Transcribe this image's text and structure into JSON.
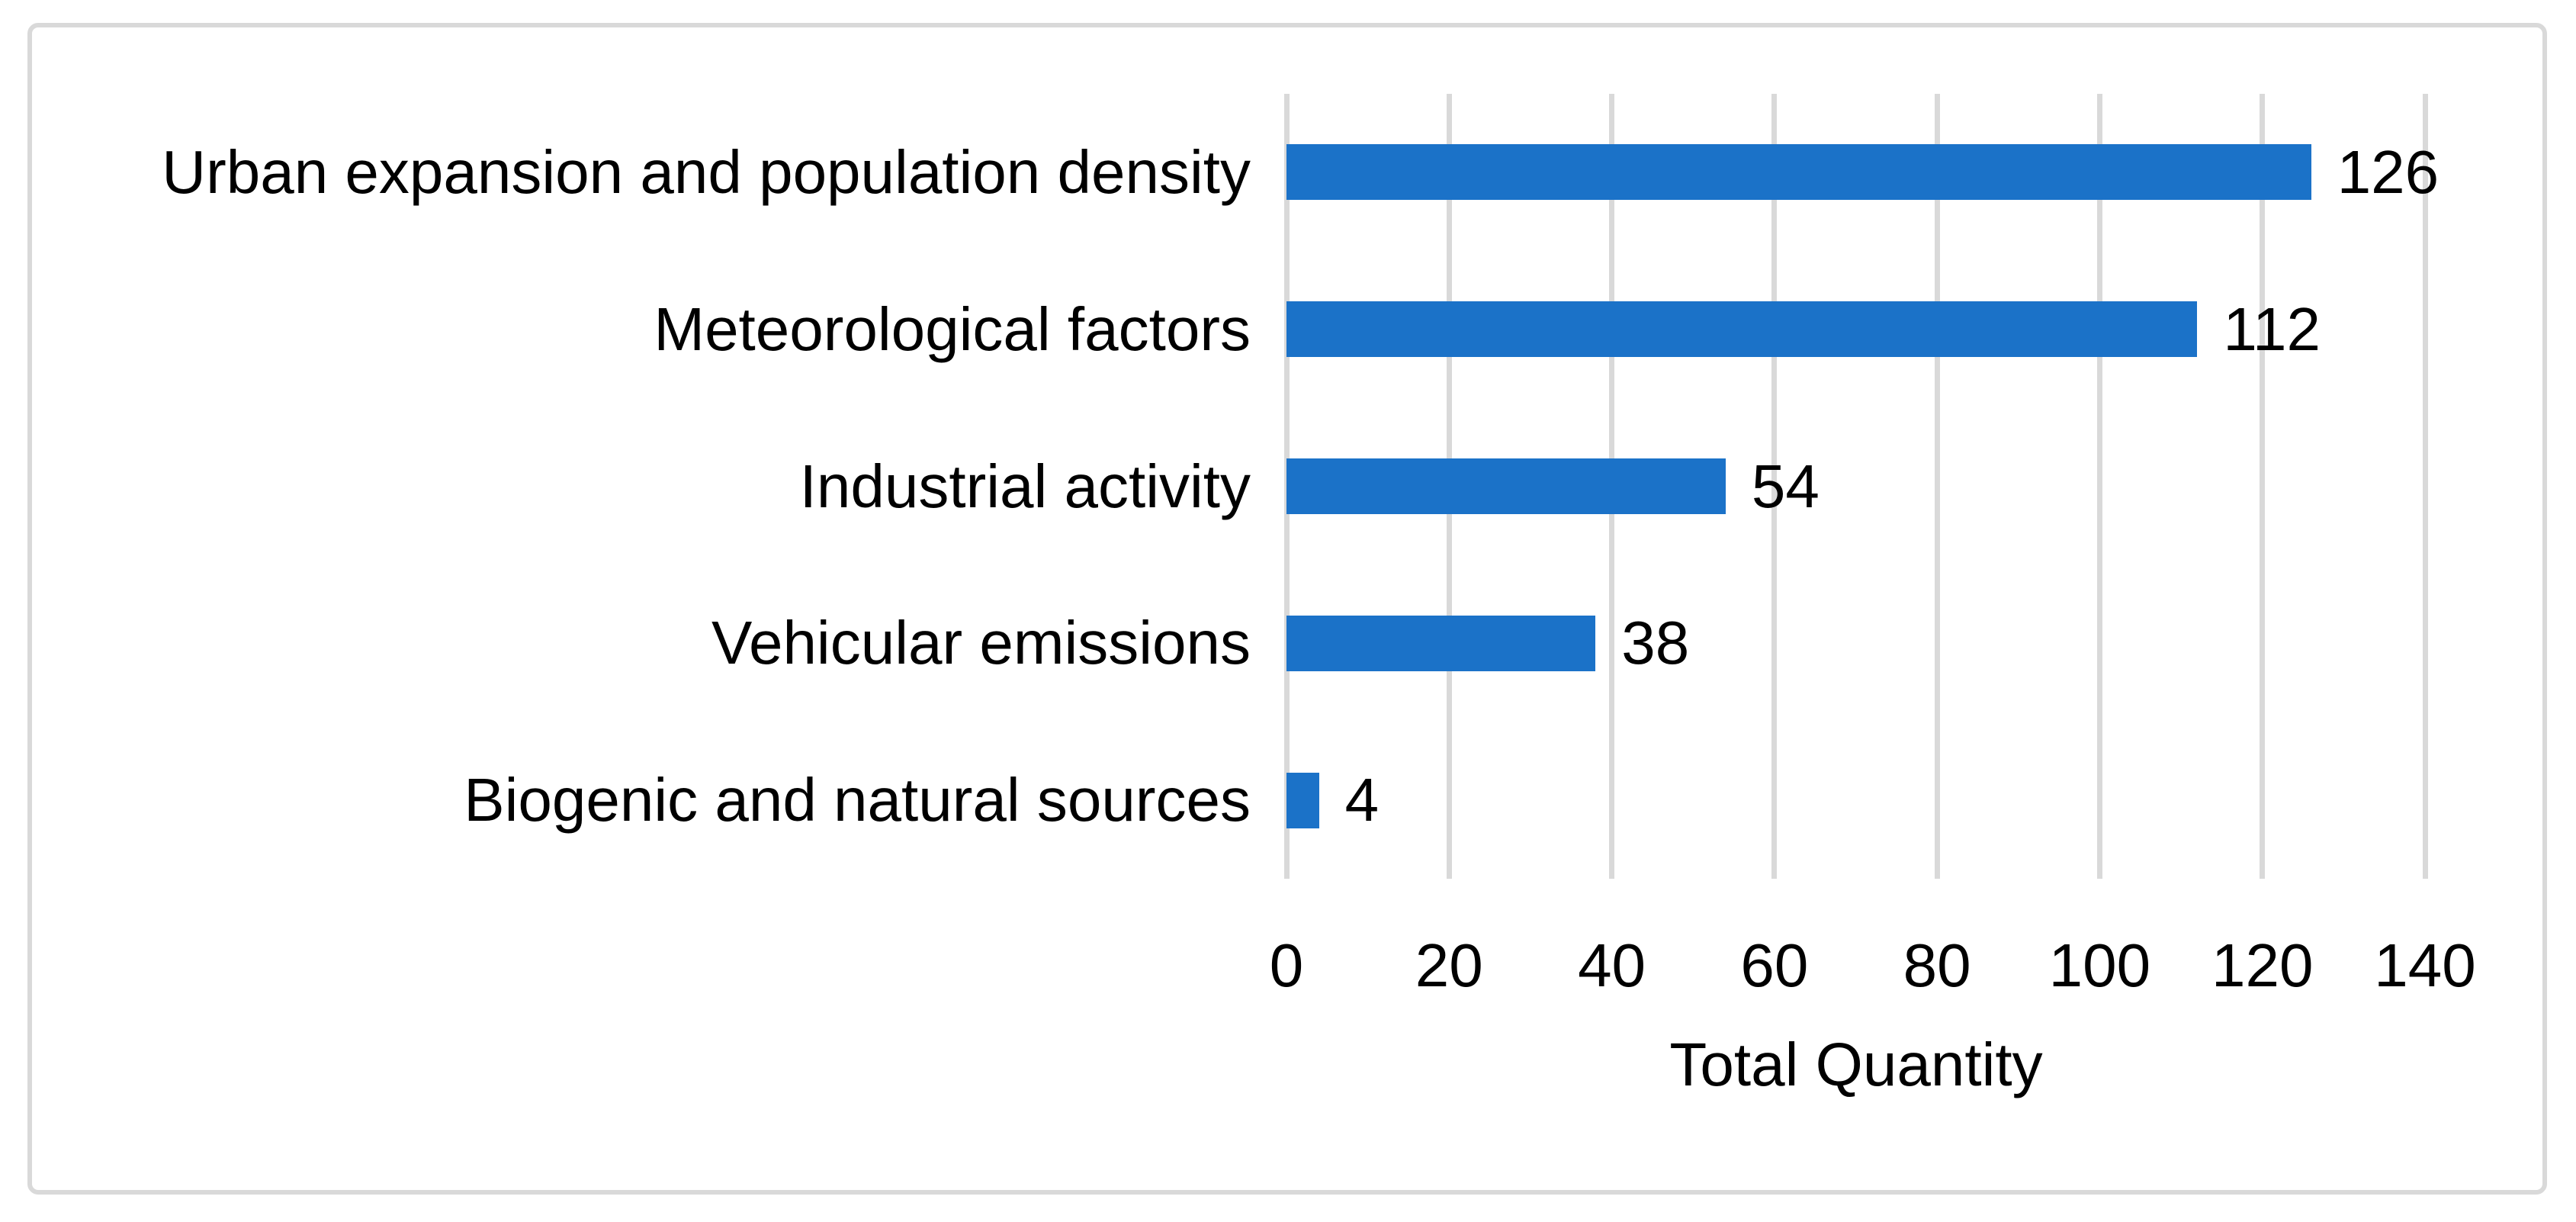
{
  "chart_data": {
    "type": "bar",
    "orientation": "horizontal",
    "title": "",
    "categories": [
      "Urban expansion and population density",
      "Meteorological factors",
      "Industrial activity",
      "Vehicular emissions",
      "Biogenic and natural sources"
    ],
    "values": [
      126,
      112,
      54,
      38,
      4
    ],
    "xlabel": "Total Quantity",
    "ylabel": "",
    "xlim": [
      0,
      140
    ],
    "xticks": [
      0,
      20,
      40,
      60,
      80,
      100,
      120,
      140
    ],
    "show_data_labels": true,
    "grid": "vertical-only",
    "legend_position": "none",
    "colors": {
      "bar": "#1B72C8",
      "gridline": "#D9D9D9",
      "frame_border": "#D9D9D9",
      "text": "#000000",
      "background": "#FFFFFF"
    }
  }
}
